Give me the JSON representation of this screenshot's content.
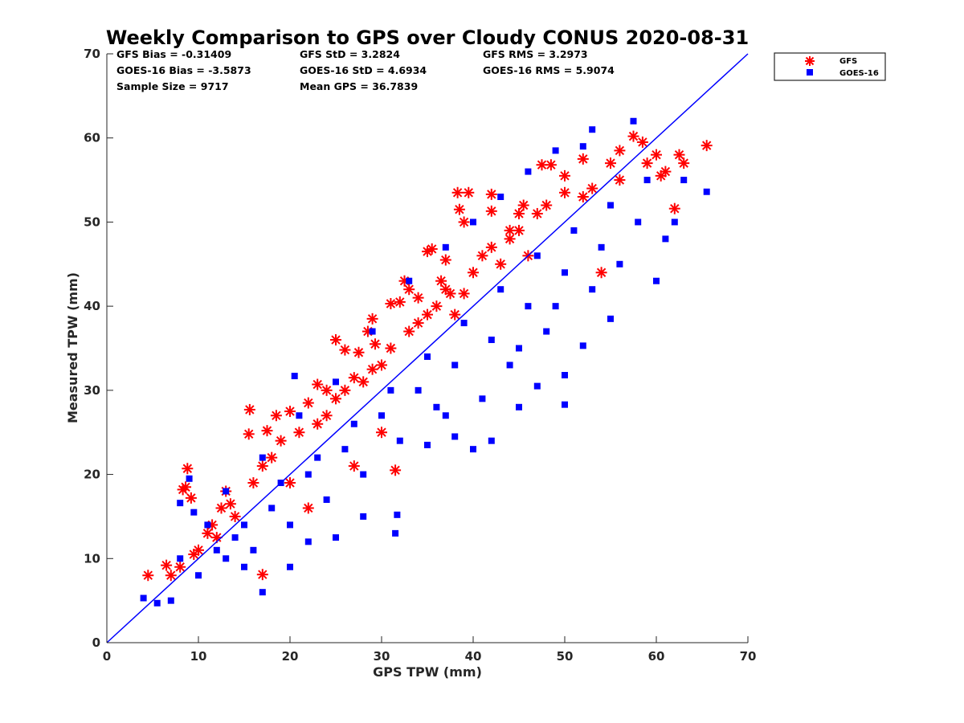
{
  "chart_data": {
    "type": "scatter",
    "title": "Weekly Comparison to GPS over Cloudy CONUS 2020-08-31",
    "xlabel": "GPS TPW (mm)",
    "ylabel": "Measured TPW (mm)",
    "xlim": [
      0,
      70
    ],
    "ylim": [
      0,
      70
    ],
    "xticks": [
      "0",
      "10",
      "20",
      "30",
      "40",
      "50",
      "60",
      "70"
    ],
    "yticks": [
      "0",
      "10",
      "20",
      "30",
      "40",
      "50",
      "60",
      "70"
    ],
    "grid": false,
    "legend_position": "top-right (outside)",
    "reference_line": {
      "type": "one-to-one",
      "x": [
        0,
        70
      ],
      "y": [
        0,
        70
      ],
      "color": "#0000ff"
    },
    "stats": {
      "row1": [
        "GFS Bias = -0.31409",
        "GFS StD = 3.2824",
        "GFS RMS = 3.2973"
      ],
      "row2": [
        "GOES-16 Bias = -3.5873",
        "GOES-16 StD = 4.6934",
        "GOES-16 RMS = 5.9074"
      ],
      "row3": [
        "Sample Size = 9717",
        "Mean GPS = 36.7839"
      ]
    },
    "series": [
      {
        "name": "GFS",
        "marker": "asterisk",
        "color": "#ff0000",
        "points": [
          [
            4.5,
            8.0
          ],
          [
            6.5,
            9.2
          ],
          [
            8.3,
            18.2
          ],
          [
            8.8,
            20.7
          ],
          [
            9.2,
            17.2
          ],
          [
            8.6,
            18.5
          ],
          [
            11.0,
            13.0
          ],
          [
            12.5,
            16.0
          ],
          [
            15.5,
            24.8
          ],
          [
            15.6,
            27.7
          ],
          [
            17.0,
            8.1
          ],
          [
            17.5,
            25.2
          ],
          [
            18.5,
            27.0
          ],
          [
            20.0,
            27.5
          ],
          [
            22.0,
            28.5
          ],
          [
            23.0,
            30.7
          ],
          [
            24.0,
            30.0
          ],
          [
            25.0,
            36.0
          ],
          [
            26.0,
            34.8
          ],
          [
            27.5,
            34.5
          ],
          [
            28.5,
            37.0
          ],
          [
            29.0,
            38.5
          ],
          [
            29.3,
            35.5
          ],
          [
            31.0,
            40.3
          ],
          [
            32.0,
            40.5
          ],
          [
            32.5,
            43.0
          ],
          [
            33.0,
            42.0
          ],
          [
            34.0,
            41.0
          ],
          [
            35.0,
            46.5
          ],
          [
            35.5,
            46.8
          ],
          [
            36.5,
            43.0
          ],
          [
            37.0,
            45.5
          ],
          [
            37.5,
            41.5
          ],
          [
            38.3,
            53.5
          ],
          [
            38.5,
            51.5
          ],
          [
            39.0,
            50.0
          ],
          [
            39.5,
            53.5
          ],
          [
            42.0,
            53.3
          ],
          [
            42.0,
            51.3
          ],
          [
            43.0,
            45.0
          ],
          [
            44.0,
            48.0
          ],
          [
            45.0,
            51.0
          ],
          [
            45.5,
            52.0
          ],
          [
            47.5,
            56.8
          ],
          [
            48.5,
            56.8
          ],
          [
            50.0,
            55.5
          ],
          [
            52.0,
            57.5
          ],
          [
            54.0,
            44.0
          ],
          [
            56.0,
            58.5
          ],
          [
            57.5,
            60.2
          ],
          [
            58.5,
            59.5
          ],
          [
            60.0,
            58.0
          ],
          [
            61.0,
            56.0
          ],
          [
            62.0,
            51.6
          ],
          [
            62.5,
            58.0
          ],
          [
            63.0,
            57.0
          ],
          [
            65.5,
            59.1
          ],
          [
            31.5,
            20.5
          ],
          [
            30.0,
            25.0
          ],
          [
            27.0,
            21.0
          ],
          [
            20.0,
            19.0
          ],
          [
            22.0,
            16.0
          ],
          [
            14.0,
            15.0
          ],
          [
            10.0,
            11.0
          ],
          [
            12.0,
            12.5
          ],
          [
            16.0,
            19.0
          ],
          [
            18.0,
            22.0
          ],
          [
            26.0,
            30.0
          ],
          [
            28.0,
            31.0
          ],
          [
            30.0,
            33.0
          ],
          [
            33.0,
            37.0
          ],
          [
            36.0,
            40.0
          ],
          [
            40.0,
            44.0
          ],
          [
            44.0,
            49.0
          ],
          [
            48.0,
            52.0
          ],
          [
            52.0,
            53.0
          ],
          [
            55.0,
            57.0
          ],
          [
            38.0,
            39.0
          ],
          [
            41.0,
            46.0
          ],
          [
            46.0,
            46.0
          ],
          [
            34.0,
            38.0
          ],
          [
            24.0,
            27.0
          ],
          [
            19.0,
            24.0
          ],
          [
            13.0,
            18.0
          ],
          [
            7.0,
            8.0
          ],
          [
            8.0,
            9.0
          ],
          [
            9.5,
            10.5
          ],
          [
            11.5,
            14.0
          ],
          [
            13.5,
            16.5
          ],
          [
            17.0,
            21.0
          ],
          [
            21.0,
            25.0
          ],
          [
            23.0,
            26.0
          ],
          [
            25.0,
            29.0
          ],
          [
            27.0,
            31.5
          ],
          [
            29.0,
            32.5
          ],
          [
            31.0,
            35.0
          ],
          [
            35.0,
            39.0
          ],
          [
            37.0,
            42.0
          ],
          [
            39.0,
            41.5
          ],
          [
            42.0,
            47.0
          ],
          [
            45.0,
            49.0
          ],
          [
            47.0,
            51.0
          ],
          [
            50.0,
            53.5
          ],
          [
            53.0,
            54.0
          ],
          [
            56.0,
            55.0
          ],
          [
            59.0,
            57.0
          ],
          [
            60.5,
            55.5
          ]
        ]
      },
      {
        "name": "GOES-16",
        "marker": "square",
        "color": "#0000ff",
        "points": [
          [
            4.0,
            5.3
          ],
          [
            5.5,
            4.7
          ],
          [
            7.0,
            5.0
          ],
          [
            8.0,
            16.6
          ],
          [
            9.0,
            19.5
          ],
          [
            9.5,
            15.5
          ],
          [
            13.0,
            10.0
          ],
          [
            15.0,
            9.0
          ],
          [
            17.0,
            6.0
          ],
          [
            20.0,
            9.0
          ],
          [
            20.5,
            31.7
          ],
          [
            22.0,
            12.0
          ],
          [
            25.0,
            12.5
          ],
          [
            28.0,
            15.0
          ],
          [
            31.7,
            15.2
          ],
          [
            31.5,
            13.0
          ],
          [
            35.0,
            23.5
          ],
          [
            38.0,
            24.5
          ],
          [
            40.0,
            23.0
          ],
          [
            42.0,
            24.0
          ],
          [
            45.0,
            28.0
          ],
          [
            47.0,
            30.5
          ],
          [
            50.0,
            31.8
          ],
          [
            50.0,
            28.3
          ],
          [
            52.0,
            35.3
          ],
          [
            55.0,
            38.5
          ],
          [
            57.5,
            62.0
          ],
          [
            60.0,
            43.0
          ],
          [
            61.0,
            48.0
          ],
          [
            62.0,
            50.0
          ],
          [
            63.0,
            55.0
          ],
          [
            65.5,
            53.6
          ],
          [
            53.0,
            61.0
          ],
          [
            52.0,
            59.0
          ],
          [
            49.0,
            58.5
          ],
          [
            46.0,
            56.0
          ],
          [
            43.0,
            53.0
          ],
          [
            40.0,
            50.0
          ],
          [
            37.0,
            47.0
          ],
          [
            33.0,
            43.0
          ],
          [
            29.0,
            37.0
          ],
          [
            25.0,
            31.0
          ],
          [
            21.0,
            27.0
          ],
          [
            17.0,
            22.0
          ],
          [
            13.0,
            18.0
          ],
          [
            11.0,
            14.0
          ],
          [
            8.0,
            10.0
          ],
          [
            10.0,
            8.0
          ],
          [
            12.0,
            11.0
          ],
          [
            15.0,
            14.0
          ],
          [
            18.0,
            16.0
          ],
          [
            22.0,
            20.0
          ],
          [
            26.0,
            23.0
          ],
          [
            30.0,
            27.0
          ],
          [
            34.0,
            30.0
          ],
          [
            38.0,
            33.0
          ],
          [
            42.0,
            36.0
          ],
          [
            46.0,
            40.0
          ],
          [
            50.0,
            44.0
          ],
          [
            54.0,
            47.0
          ],
          [
            58.0,
            50.0
          ],
          [
            44.0,
            33.0
          ],
          [
            48.0,
            37.0
          ],
          [
            36.0,
            28.0
          ],
          [
            32.0,
            24.0
          ],
          [
            28.0,
            20.0
          ],
          [
            24.0,
            17.0
          ],
          [
            20.0,
            14.0
          ],
          [
            16.0,
            11.0
          ],
          [
            14.0,
            12.5
          ],
          [
            19.0,
            19.0
          ],
          [
            23.0,
            22.0
          ],
          [
            27.0,
            26.0
          ],
          [
            31.0,
            30.0
          ],
          [
            35.0,
            34.0
          ],
          [
            39.0,
            38.0
          ],
          [
            43.0,
            42.0
          ],
          [
            47.0,
            46.0
          ],
          [
            51.0,
            49.0
          ],
          [
            55.0,
            52.0
          ],
          [
            59.0,
            55.0
          ],
          [
            56.0,
            45.0
          ],
          [
            53.0,
            42.0
          ],
          [
            41.0,
            29.0
          ],
          [
            37.0,
            27.0
          ],
          [
            45.0,
            35.0
          ],
          [
            49.0,
            40.0
          ]
        ]
      }
    ]
  }
}
